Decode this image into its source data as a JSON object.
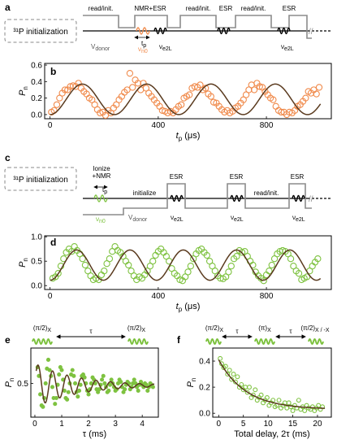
{
  "panel_labels": {
    "a": "a",
    "b": "b",
    "c": "c",
    "d": "d",
    "e": "e",
    "f": "f"
  },
  "colors": {
    "orange": "#f08a4b",
    "green": "#7ec240",
    "fit": "#5a3a1e",
    "seq": "#8c8c8c",
    "box": "#888888"
  },
  "panel_a": {
    "init_box": "³¹P initialization",
    "segments": [
      "read/init.",
      "NMR+ESR",
      "read/init.",
      "ESR",
      "read/init.",
      "ESR"
    ],
    "v_donor": "V",
    "v_donor_sub": "donor",
    "tp": "t",
    "tp_sub": "p",
    "nu_n": "ν",
    "nu_n_sub": "n0",
    "nu_e1": "ν",
    "nu_e1_sub": "e2L",
    "nu_e2": "ν",
    "nu_e2_sub": "e2L"
  },
  "panel_c": {
    "init_box": "³¹P initialization",
    "ionize": "Ionize",
    "ionize_nmr": "+NMR",
    "initialize": "initialize",
    "segments": [
      "ESR",
      "ESR",
      "read/init.",
      "ESR"
    ],
    "v_donor": "V",
    "v_donor_sub": "donor",
    "tp": "t",
    "tp_sub": "p",
    "nu_n": "ν",
    "nu_n_sub": "n0",
    "nu_e1": "ν",
    "nu_e1_sub": "e2L",
    "nu_e2": "ν",
    "nu_e2_sub": "e2L",
    "nu_e3": "ν",
    "nu_e3_sub": "e2L"
  },
  "panel_e": {
    "pulse1": "(π/2)",
    "pulse1_sub": "X",
    "tau": "τ",
    "pulse2": "(π/2)",
    "pulse2_sub": "X"
  },
  "panel_f": {
    "pulse1": "(π/2)",
    "pulse1_sub": "X",
    "tau1": "τ",
    "pulse_pi": "(π)",
    "pulse_pi_sub": "X",
    "tau2": "τ",
    "pulse3": "(π/2)",
    "pulse3_sub": "X / -X"
  },
  "chart_data": [
    {
      "id": "b",
      "type": "scatter",
      "xlabel": "t",
      "xlabel_sub": "p",
      "xlabel_unit": " (μs)",
      "ylabel": "P",
      "ylabel_sub": "n",
      "xlim": [
        -20,
        1040
      ],
      "ylim": [
        -0.05,
        0.62
      ],
      "xticks": [
        0,
        400,
        800
      ],
      "yticks": [
        0.0,
        0.2,
        0.4,
        0.6
      ],
      "xtick_labels": [
        "0",
        "400",
        "800"
      ],
      "ytick_labels": [
        "0.0",
        "0.2",
        "0.4",
        "0.6"
      ],
      "fit": {
        "offset": 0.185,
        "amp": 0.185,
        "period": 238,
        "phase": 0
      },
      "x": [
        5,
        15,
        25,
        35,
        45,
        55,
        65,
        75,
        85,
        95,
        105,
        115,
        125,
        135,
        145,
        155,
        165,
        175,
        185,
        195,
        205,
        215,
        225,
        235,
        245,
        255,
        265,
        275,
        285,
        295,
        305,
        315,
        325,
        335,
        345,
        355,
        365,
        375,
        385,
        395,
        405,
        415,
        425,
        435,
        445,
        455,
        465,
        475,
        485,
        495,
        505,
        515,
        525,
        535,
        545,
        555,
        565,
        575,
        585,
        595,
        605,
        615,
        625,
        635,
        645,
        655,
        665,
        675,
        685,
        695,
        705,
        715,
        725,
        735,
        745,
        755,
        765,
        775,
        785,
        795,
        805,
        815,
        825,
        835,
        845,
        855,
        865,
        875,
        885,
        895,
        905,
        915,
        925,
        935,
        945,
        955,
        965,
        975,
        985,
        995
      ],
      "y": [
        0.03,
        0.05,
        0.12,
        0.2,
        0.26,
        0.3,
        0.3,
        0.34,
        0.35,
        0.34,
        0.38,
        0.32,
        0.28,
        0.25,
        0.2,
        0.18,
        0.12,
        0.06,
        0.02,
        0.03,
        -0.01,
        0.05,
        0.02,
        0.08,
        0.12,
        0.18,
        0.22,
        0.27,
        0.3,
        0.5,
        0.33,
        0.42,
        0.38,
        0.3,
        0.38,
        0.32,
        0.26,
        0.22,
        0.18,
        0.14,
        0.1,
        0.05,
        0.04,
        0.02,
        0.04,
        0.02,
        0.06,
        0.1,
        0.12,
        0.2,
        0.22,
        0.24,
        0.32,
        0.34,
        0.33,
        0.36,
        0.3,
        0.32,
        0.25,
        0.22,
        0.15,
        0.14,
        0.1,
        0.06,
        0.03,
        0.05,
        0.02,
        0.04,
        0.08,
        0.1,
        0.14,
        0.18,
        0.24,
        0.3,
        0.36,
        0.3,
        0.38,
        0.34,
        0.33,
        0.28,
        0.24,
        0.2,
        0.18,
        0.1,
        0.05,
        0.03,
        0.03,
        0.0,
        0.03,
        0.02,
        0.05,
        0.1,
        0.12,
        0.16,
        0.2,
        0.28,
        0.26,
        0.3,
        0.25,
        0.33
      ]
    },
    {
      "id": "d",
      "type": "scatter",
      "xlabel": "t",
      "xlabel_sub": "p",
      "xlabel_unit": " (μs)",
      "ylabel": "P",
      "ylabel_sub": "n",
      "xlim": [
        -20,
        1040
      ],
      "ylim": [
        -0.08,
        1.02
      ],
      "xticks": [
        0,
        400,
        800
      ],
      "yticks": [
        0.0,
        0.5,
        1.0
      ],
      "xtick_labels": [
        "0",
        "400",
        "800"
      ],
      "ytick_labels": [
        "0.0",
        "0.5",
        "1.0"
      ],
      "fit": {
        "offset": 0.42,
        "amp": 0.31,
        "period": 197,
        "phase": 0
      },
      "x": [
        10,
        20,
        30,
        40,
        50,
        60,
        70,
        80,
        90,
        100,
        110,
        120,
        130,
        140,
        150,
        160,
        170,
        180,
        190,
        200,
        210,
        220,
        230,
        240,
        250,
        260,
        270,
        280,
        290,
        300,
        310,
        320,
        330,
        340,
        350,
        360,
        370,
        380,
        390,
        400,
        410,
        420,
        430,
        440,
        450,
        460,
        470,
        480,
        490,
        500,
        510,
        520,
        530,
        540,
        550,
        560,
        570,
        580,
        590,
        600,
        610,
        620,
        630,
        640,
        650,
        660,
        670,
        680,
        690,
        700,
        710,
        720,
        730,
        740,
        750,
        760,
        770,
        780,
        790,
        800,
        810,
        820,
        830,
        840,
        850,
        860,
        870,
        880,
        890,
        900,
        910,
        920,
        930,
        940,
        950,
        960,
        970,
        980,
        990
      ],
      "y": [
        0.15,
        0.18,
        0.25,
        0.4,
        0.55,
        0.68,
        0.75,
        0.7,
        0.8,
        0.72,
        0.65,
        0.55,
        0.42,
        0.3,
        0.2,
        0.12,
        0.15,
        0.12,
        0.22,
        0.3,
        0.45,
        0.55,
        0.7,
        0.8,
        0.72,
        0.68,
        0.6,
        0.5,
        0.42,
        0.3,
        0.2,
        0.12,
        0.18,
        0.15,
        0.22,
        0.3,
        0.4,
        0.5,
        0.62,
        0.7,
        0.75,
        0.68,
        0.6,
        0.5,
        0.35,
        0.25,
        0.2,
        0.12,
        0.1,
        0.18,
        0.28,
        0.4,
        0.55,
        0.65,
        0.72,
        0.75,
        0.68,
        0.62,
        0.5,
        0.4,
        0.3,
        0.2,
        0.15,
        0.14,
        0.18,
        0.28,
        0.4,
        0.55,
        0.6,
        0.72,
        0.68,
        0.7,
        0.6,
        0.5,
        0.42,
        0.28,
        0.2,
        0.15,
        0.1,
        0.22,
        0.3,
        0.42,
        0.55,
        0.65,
        0.7,
        0.72,
        0.7,
        0.65,
        0.55,
        0.4,
        0.3,
        0.25,
        0.12,
        0.15,
        0.18,
        0.3,
        0.4,
        0.48,
        0.55
      ]
    },
    {
      "id": "e",
      "type": "scatter",
      "xlabel": "τ (ms)",
      "ylabel": "P",
      "ylabel_sub": "n",
      "xlim": [
        -0.15,
        4.6
      ],
      "ylim": [
        0.04,
        0.98
      ],
      "xticks": [
        0,
        1,
        2,
        3,
        4
      ],
      "yticks": [
        0.5
      ],
      "xtick_labels": [
        "0",
        "1",
        "2",
        "3",
        "4"
      ],
      "ytick_labels": [
        "0.5"
      ],
      "fit": {
        "offset": 0.47,
        "amp": 0.3,
        "period": 0.54,
        "tau": 1.6,
        "phase_shift": 0.12
      },
      "x": [
        0.1,
        0.15,
        0.2,
        0.25,
        0.3,
        0.35,
        0.4,
        0.45,
        0.5,
        0.55,
        0.6,
        0.65,
        0.7,
        0.75,
        0.8,
        0.85,
        0.9,
        0.95,
        1.0,
        1.05,
        1.1,
        1.15,
        1.2,
        1.25,
        1.3,
        1.35,
        1.4,
        1.45,
        1.5,
        1.55,
        1.6,
        1.65,
        1.7,
        1.75,
        1.8,
        1.85,
        1.9,
        1.95,
        2.0,
        2.05,
        2.1,
        2.15,
        2.2,
        2.25,
        2.3,
        2.35,
        2.4,
        2.45,
        2.5,
        2.55,
        2.6,
        2.65,
        2.7,
        2.75,
        2.8,
        2.85,
        2.9,
        2.95,
        3.0,
        3.05,
        3.1,
        3.15,
        3.2,
        3.25,
        3.3,
        3.35,
        3.4,
        3.45,
        3.5,
        3.55,
        3.6,
        3.65,
        3.7,
        3.75,
        3.8,
        3.85,
        3.9,
        3.95,
        4.0,
        4.05,
        4.1,
        4.15,
        4.2,
        4.25,
        4.3,
        4.35,
        4.4
      ],
      "y": [
        0.72,
        0.6,
        0.35,
        0.2,
        0.18,
        0.3,
        0.5,
        0.7,
        0.82,
        0.68,
        0.6,
        0.45,
        0.3,
        0.22,
        0.3,
        0.48,
        0.62,
        0.72,
        0.68,
        0.55,
        0.4,
        0.3,
        0.28,
        0.38,
        0.5,
        0.62,
        0.68,
        0.6,
        0.5,
        0.38,
        0.32,
        0.4,
        0.48,
        0.6,
        0.62,
        0.58,
        0.5,
        0.4,
        0.35,
        0.42,
        0.5,
        0.58,
        0.55,
        0.5,
        0.42,
        0.38,
        0.42,
        0.48,
        0.55,
        0.6,
        0.5,
        0.45,
        0.38,
        0.4,
        0.48,
        0.55,
        0.5,
        0.45,
        0.4,
        0.42,
        0.5,
        0.55,
        0.52,
        0.45,
        0.38,
        0.42,
        0.48,
        0.52,
        0.5,
        0.42,
        0.45,
        0.5,
        0.55,
        0.5,
        0.45,
        0.4,
        0.48,
        0.52,
        0.48,
        0.45,
        0.5,
        0.48,
        0.4,
        0.45,
        0.5,
        0.48,
        0.45
      ]
    },
    {
      "id": "f",
      "type": "scatter",
      "xlabel": "Total delay, 2τ (ms)",
      "ylabel": "P",
      "ylabel_sub": "n",
      "xlim": [
        -1.2,
        22.8
      ],
      "ylim": [
        -0.03,
        0.5
      ],
      "xticks": [
        0,
        5,
        10,
        15,
        20
      ],
      "yticks": [
        0.0,
        0.2,
        0.4
      ],
      "xtick_labels": [
        "0",
        "5",
        "10",
        "15",
        "20"
      ],
      "ytick_labels": [
        "0.0",
        "0.2",
        "0.4"
      ],
      "fit": {
        "offset": 0.03,
        "amp": 0.38,
        "tau": 5.5
      },
      "x": [
        0.3,
        0.6,
        1.0,
        1.4,
        1.8,
        2.2,
        2.6,
        3.0,
        3.4,
        3.8,
        4.2,
        4.6,
        5.0,
        5.4,
        5.8,
        6.2,
        6.6,
        7.0,
        7.4,
        7.8,
        8.2,
        8.6,
        9.0,
        9.4,
        9.8,
        10.2,
        10.6,
        11.0,
        11.4,
        11.8,
        12.2,
        12.6,
        13.0,
        13.4,
        13.8,
        14.2,
        14.6,
        15.0,
        15.4,
        15.8,
        16.2,
        16.6,
        17.0,
        17.4,
        17.8,
        18.2,
        18.6,
        19.0,
        19.4,
        19.8,
        20.2,
        20.6,
        21.0
      ],
      "y": [
        0.42,
        0.38,
        0.35,
        0.36,
        0.3,
        0.33,
        0.26,
        0.3,
        0.24,
        0.28,
        0.2,
        0.22,
        0.18,
        0.2,
        0.16,
        0.2,
        0.12,
        0.14,
        0.18,
        0.1,
        0.12,
        0.14,
        0.08,
        0.1,
        0.12,
        0.06,
        0.08,
        0.1,
        0.05,
        0.06,
        0.1,
        0.04,
        0.06,
        0.08,
        0.04,
        0.08,
        0.05,
        0.02,
        0.06,
        0.04,
        0.1,
        0.03,
        0.05,
        0.02,
        0.06,
        0.04,
        0.03,
        0.05,
        0.02,
        0.04,
        0.06,
        0.03,
        0.05
      ]
    }
  ]
}
